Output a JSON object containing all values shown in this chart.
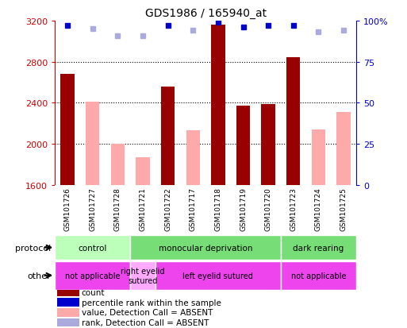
{
  "title": "GDS1986 / 165940_at",
  "samples": [
    "GSM101726",
    "GSM101727",
    "GSM101728",
    "GSM101721",
    "GSM101722",
    "GSM101717",
    "GSM101718",
    "GSM101719",
    "GSM101720",
    "GSM101723",
    "GSM101724",
    "GSM101725"
  ],
  "count_values": [
    2680,
    null,
    null,
    null,
    2560,
    null,
    3160,
    2370,
    2390,
    2840,
    null,
    null
  ],
  "absent_value_values": [
    null,
    2410,
    2000,
    1870,
    null,
    2130,
    null,
    null,
    null,
    null,
    2140,
    2310
  ],
  "percentile_rank": [
    97,
    null,
    null,
    null,
    97,
    null,
    99,
    96,
    97,
    97,
    null,
    null
  ],
  "absent_rank_values": [
    null,
    95,
    91,
    91,
    null,
    94,
    null,
    null,
    null,
    null,
    93,
    94
  ],
  "ylim_left": [
    1600,
    3200
  ],
  "ylim_right": [
    0,
    100
  ],
  "yticks_left": [
    1600,
    2000,
    2400,
    2800,
    3200
  ],
  "yticks_right": [
    0,
    25,
    50,
    75,
    100
  ],
  "ytick_right_labels": [
    "0",
    "25",
    "50",
    "75",
    "100%"
  ],
  "left_axis_color": "#cc0000",
  "right_axis_color": "#0000cc",
  "bar_color_present": "#990000",
  "bar_color_absent_value": "#ffaaaa",
  "dot_color_present": "#0000cc",
  "dot_color_absent_rank": "#aaaadd",
  "sample_label_bg": "#cccccc",
  "protocol_groups": [
    {
      "label": "control",
      "start": 0,
      "end": 3,
      "color": "#bbffbb"
    },
    {
      "label": "monocular deprivation",
      "start": 3,
      "end": 9,
      "color": "#77dd77"
    },
    {
      "label": "dark rearing",
      "start": 9,
      "end": 12,
      "color": "#77dd77"
    }
  ],
  "other_groups": [
    {
      "label": "not applicable",
      "start": 0,
      "end": 3,
      "color": "#ee44ee"
    },
    {
      "label": "right eyelid\nsutured",
      "start": 3,
      "end": 4,
      "color": "#ffaaff"
    },
    {
      "label": "left eyelid sutured",
      "start": 4,
      "end": 9,
      "color": "#ee44ee"
    },
    {
      "label": "not applicable",
      "start": 9,
      "end": 12,
      "color": "#ee44ee"
    }
  ],
  "legend_items": [
    {
      "label": "count",
      "color": "#990000"
    },
    {
      "label": "percentile rank within the sample",
      "color": "#0000cc"
    },
    {
      "label": "value, Detection Call = ABSENT",
      "color": "#ffaaaa"
    },
    {
      "label": "rank, Detection Call = ABSENT",
      "color": "#aaaadd"
    }
  ],
  "protocol_label": "protocol",
  "other_label": "other",
  "background_color": "#ffffff",
  "grid_dotted_at": [
    2000,
    2400,
    2800
  ]
}
